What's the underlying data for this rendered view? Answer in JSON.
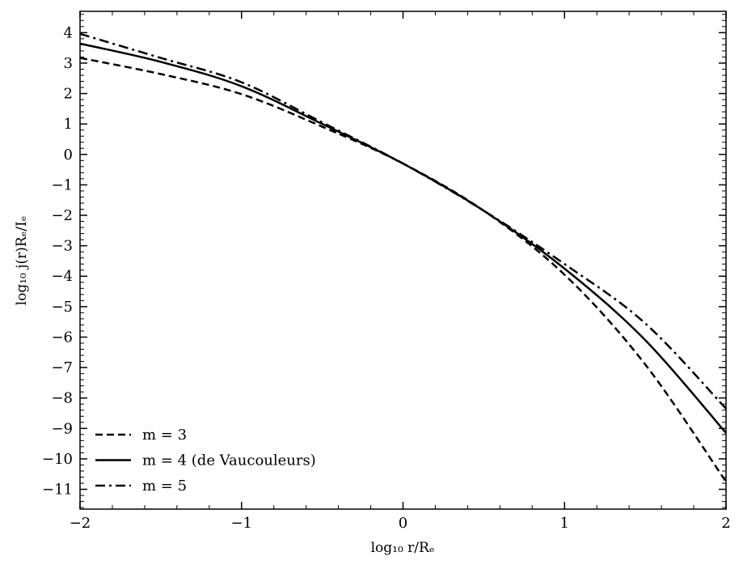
{
  "chart_data": {
    "type": "line",
    "title": "",
    "xlabel": "log₁₀ r/Rₑ",
    "ylabel": "log₁₀ j(r)Rₑ/Iₑ",
    "xlim": [
      -2,
      2
    ],
    "ylim": [
      -11.65,
      4.7
    ],
    "xticks": [
      -2,
      -1,
      0,
      1,
      2
    ],
    "xtick_labels": [
      "−2",
      "−1",
      "0",
      "1",
      "2"
    ],
    "yticks": [
      4,
      3,
      2,
      1,
      0,
      -1,
      -2,
      -3,
      -4,
      -5,
      -6,
      -7,
      -8,
      -9,
      -10,
      -11
    ],
    "ytick_labels": [
      "4",
      "3",
      "2",
      "1",
      "0",
      "−1",
      "−2",
      "−3",
      "−4",
      "−5",
      "−6",
      "−7",
      "−8",
      "−9",
      "−10",
      "−11"
    ],
    "grid": false,
    "legend_position": "bottom-left",
    "x": [
      -2,
      -1.5,
      -1,
      -0.5,
      0,
      0.5,
      1,
      1.5,
      2
    ],
    "series": [
      {
        "name": "m = 3",
        "style": "dashed",
        "color": "#000000",
        "values": [
          3.17,
          2.64,
          1.98,
          0.91,
          -0.3,
          -1.85,
          -3.95,
          -6.9,
          -10.75
        ]
      },
      {
        "name": "m = 4 (de Vaucouleurs)",
        "style": "solid",
        "color": "#000000",
        "values": [
          3.64,
          3.04,
          2.24,
          1.0,
          -0.3,
          -1.85,
          -3.75,
          -6.1,
          -9.15
        ]
      },
      {
        "name": "m = 5",
        "style": "dashdot",
        "color": "#000000",
        "values": [
          3.96,
          3.17,
          2.37,
          1.05,
          -0.3,
          -1.85,
          -3.6,
          -5.55,
          -8.35
        ]
      }
    ]
  }
}
